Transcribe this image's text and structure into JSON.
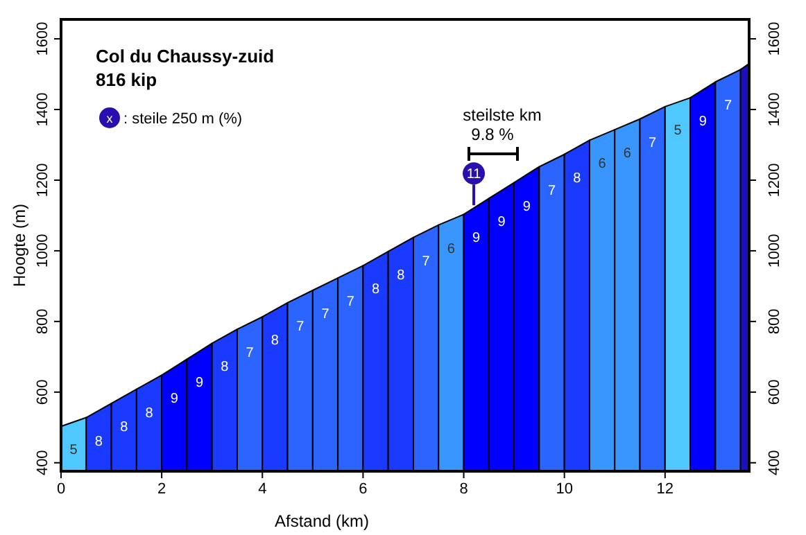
{
  "chart_data": {
    "type": "area",
    "title": "Col du Chaussy-zuid",
    "subtitle": "816 kip",
    "xlabel": "Afstand (km)",
    "ylabel": "Hoogte (m)",
    "series": [
      {
        "x": [
          0,
          0.5
        ],
        "values": [
          503,
          528
        ],
        "color": "#50c8ff"
      },
      {
        "x": [
          0.5,
          1
        ],
        "values": [
          528,
          568
        ],
        "color": "#1a3aff"
      },
      {
        "x": [
          1,
          1.5
        ],
        "values": [
          568,
          608
        ],
        "color": "#1a3aff"
      },
      {
        "x": [
          1.5,
          2
        ],
        "values": [
          608,
          648
        ],
        "color": "#1a3aff"
      },
      {
        "x": [
          2,
          2.5
        ],
        "values": [
          648,
          693
        ],
        "color": "#0000ff"
      },
      {
        "x": [
          2.5,
          3
        ],
        "values": [
          693,
          738
        ],
        "color": "#0000ff"
      },
      {
        "x": [
          3,
          3.5
        ],
        "values": [
          738,
          778
        ],
        "color": "#1a3aff"
      },
      {
        "x": [
          3.5,
          4
        ],
        "values": [
          778,
          813
        ],
        "color": "#2b64ff"
      },
      {
        "x": [
          4,
          4.5
        ],
        "values": [
          813,
          853
        ],
        "color": "#1a3aff"
      },
      {
        "x": [
          4.5,
          5
        ],
        "values": [
          853,
          888
        ],
        "color": "#2b64ff"
      },
      {
        "x": [
          5,
          5.5
        ],
        "values": [
          888,
          923
        ],
        "color": "#2b64ff"
      },
      {
        "x": [
          5.5,
          6
        ],
        "values": [
          923,
          958
        ],
        "color": "#2b64ff"
      },
      {
        "x": [
          6,
          6.5
        ],
        "values": [
          958,
          998
        ],
        "color": "#1a3aff"
      },
      {
        "x": [
          6.5,
          7
        ],
        "values": [
          998,
          1038
        ],
        "color": "#1a3aff"
      },
      {
        "x": [
          7,
          7.5
        ],
        "values": [
          1038,
          1073
        ],
        "color": "#2b64ff"
      },
      {
        "x": [
          7.5,
          8
        ],
        "values": [
          1073,
          1103
        ],
        "color": "#3a96ff"
      },
      {
        "x": [
          8,
          8.5
        ],
        "values": [
          1103,
          1148
        ],
        "color": "#0000ff"
      },
      {
        "x": [
          8.5,
          9
        ],
        "values": [
          1148,
          1193
        ],
        "color": "#0000ff"
      },
      {
        "x": [
          9,
          9.5
        ],
        "values": [
          1193,
          1238
        ],
        "color": "#0000ff"
      },
      {
        "x": [
          9.5,
          10
        ],
        "values": [
          1238,
          1273
        ],
        "color": "#2b64ff"
      },
      {
        "x": [
          10,
          10.5
        ],
        "values": [
          1273,
          1313
        ],
        "color": "#1a3aff"
      },
      {
        "x": [
          10.5,
          11
        ],
        "values": [
          1313,
          1343
        ],
        "color": "#3a96ff"
      },
      {
        "x": [
          11,
          11.5
        ],
        "values": [
          1343,
          1373
        ],
        "color": "#3a96ff"
      },
      {
        "x": [
          11.5,
          12
        ],
        "values": [
          1373,
          1408
        ],
        "color": "#2b64ff"
      },
      {
        "x": [
          12,
          12.5
        ],
        "values": [
          1408,
          1433
        ],
        "color": "#50c8ff"
      },
      {
        "x": [
          12.5,
          13
        ],
        "values": [
          1433,
          1478
        ],
        "color": "#0000ff"
      },
      {
        "x": [
          13,
          13.5
        ],
        "values": [
          1478,
          1513
        ],
        "color": "#2b64ff"
      },
      {
        "x": [
          13.5,
          13.67
        ],
        "values": [
          1513,
          1530
        ],
        "color": "#1a10c0"
      }
    ],
    "xlim": [
      0,
      13.67
    ],
    "xticks": [
      0,
      2,
      4,
      6,
      8,
      10,
      12
    ],
    "ylim": [
      376,
      1655
    ],
    "yticks": [
      400,
      600,
      800,
      1000,
      1200,
      1400,
      1600
    ],
    "y2lim": [
      376,
      1655
    ],
    "y2ticks": [
      400,
      600,
      800,
      1000,
      1200,
      1400,
      1600
    ],
    "annotations": [
      "5",
      "8",
      "8",
      "8",
      "9",
      "9",
      "8",
      "7",
      "8",
      "7",
      "7",
      "7",
      "8",
      "8",
      "7",
      "6",
      "9",
      "9",
      "9",
      "7",
      "8",
      "6",
      "6",
      "7",
      "5",
      "9",
      "7",
      {
        "text": "11",
        "x": 8.2,
        "y": 1121
      },
      "steilste km",
      "9.8 %",
      "x",
      ": steile 250 m (%)"
    ]
  }
}
